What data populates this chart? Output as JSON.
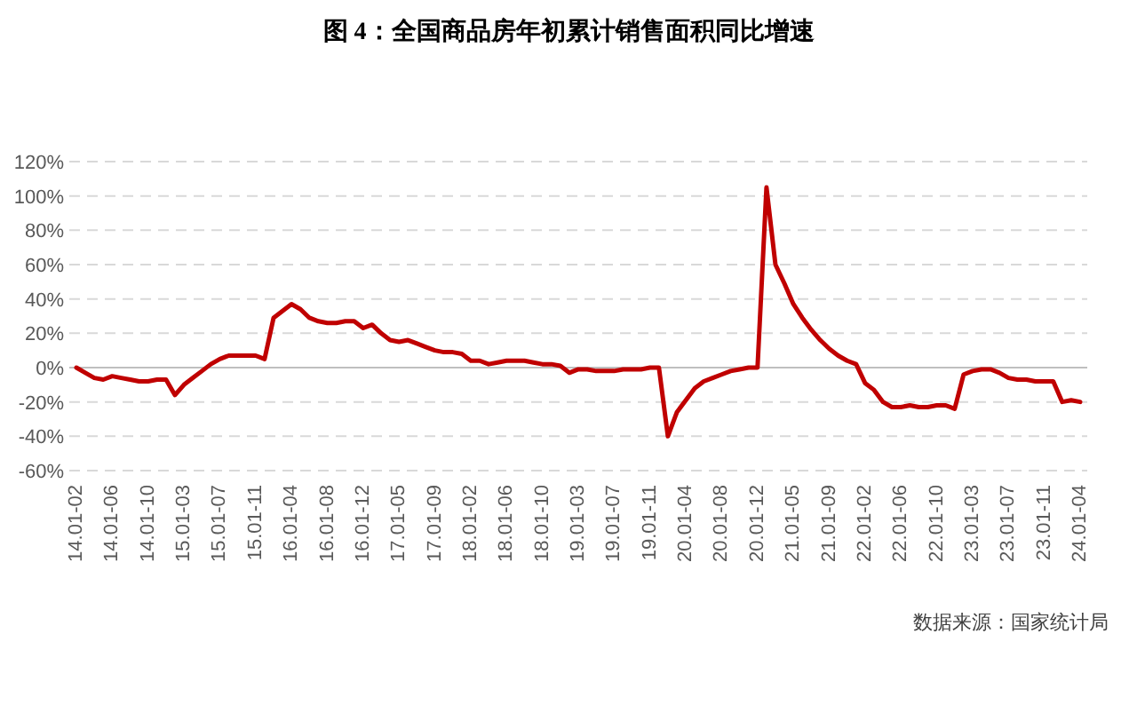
{
  "chart_data": {
    "type": "line",
    "title": "图 4：全国商品房年初累计销售面积同比增速",
    "categories": [
      "14.01-02",
      null,
      null,
      null,
      "14.01-06",
      null,
      null,
      null,
      "14.01-10",
      null,
      null,
      null,
      "15.01-03",
      null,
      null,
      null,
      "15.01-07",
      null,
      null,
      null,
      "15.01-11",
      null,
      null,
      null,
      "16.01-04",
      null,
      null,
      null,
      "16.01-08",
      null,
      null,
      null,
      "16.01-12",
      null,
      null,
      null,
      "17.01-05",
      null,
      null,
      null,
      "17.01-09",
      null,
      null,
      null,
      "18.01-02",
      null,
      null,
      null,
      "18.01-06",
      null,
      null,
      null,
      "18.01-10",
      null,
      null,
      null,
      "19.01-03",
      null,
      null,
      null,
      "19.01-07",
      null,
      null,
      null,
      "19.01-11",
      null,
      null,
      null,
      "20.01-04",
      null,
      null,
      null,
      "20.01-08",
      null,
      null,
      null,
      "20.01-12",
      null,
      null,
      null,
      "21.01-05",
      null,
      null,
      null,
      "21.01-09",
      null,
      null,
      null,
      "22.01-02",
      null,
      null,
      null,
      "22.01-06",
      null,
      null,
      null,
      "22.01-10",
      null,
      null,
      null,
      "23.01-03",
      null,
      null,
      null,
      "23.01-07",
      null,
      null,
      null,
      "23.01-11",
      null,
      null,
      null,
      "24.01-04"
    ],
    "series": [
      {
        "color": "#c00000",
        "values": [
          0,
          -3,
          -6,
          -7,
          -5,
          -6,
          -7,
          -8,
          -8,
          -7,
          -7,
          -16,
          -10,
          -6,
          -2,
          2,
          5,
          7,
          7,
          7,
          7,
          5,
          29,
          33,
          37,
          34,
          29,
          27,
          26,
          26,
          27,
          27,
          23,
          25,
          20,
          16,
          15,
          16,
          14,
          12,
          10,
          9,
          9,
          8,
          4,
          4,
          2,
          3,
          4,
          4,
          4,
          3,
          2,
          2,
          1,
          -3,
          -1,
          -1,
          -2,
          -2,
          -2,
          -1,
          -1,
          -1,
          0,
          0,
          -40,
          -26,
          -19,
          -12,
          -8,
          -6,
          -4,
          -2,
          -1,
          0,
          0,
          105,
          60,
          49,
          37,
          29,
          22,
          16,
          11,
          7,
          4,
          2,
          -9,
          -13,
          -20,
          -23,
          -23,
          -22,
          -23,
          -23,
          -22,
          -22,
          -24,
          -4,
          -2,
          -1,
          -1,
          -3,
          -6,
          -7,
          -7,
          -8,
          -8,
          -8,
          -20,
          -19,
          -20
        ]
      }
    ],
    "ylim": [
      -60,
      120
    ],
    "yticks": [
      {
        "value": -60,
        "label": "-60%"
      },
      {
        "value": -40,
        "label": "-40%"
      },
      {
        "value": -20,
        "label": "-20%"
      },
      {
        "value": 0,
        "label": "0%"
      },
      {
        "value": 20,
        "label": "20%"
      },
      {
        "value": 40,
        "label": "40%"
      },
      {
        "value": 60,
        "label": "60%"
      },
      {
        "value": 80,
        "label": "80%"
      },
      {
        "value": 100,
        "label": "100%"
      },
      {
        "value": 120,
        "label": "120%"
      }
    ],
    "grid": "y",
    "line_style": "solid",
    "marker": "none",
    "annotations": [
      "数据来源：国家统计局"
    ]
  }
}
